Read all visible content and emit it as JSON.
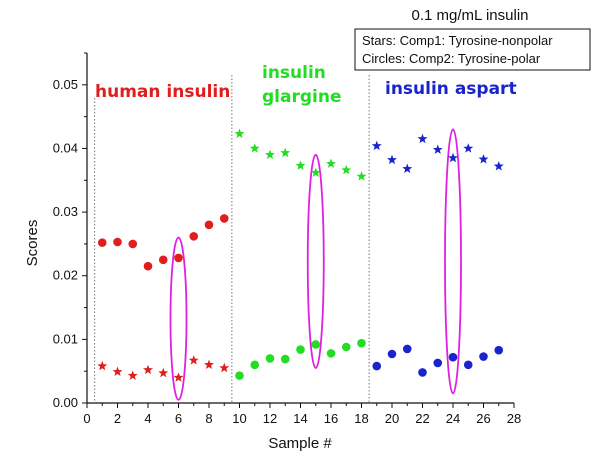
{
  "chart_data": {
    "type": "scatter",
    "title": "0.1 mg/mL insulin",
    "legend_lines": [
      "Stars: Comp1: Tyrosine-nonpolar",
      "Circles: Comp2: Tyrosine-polar"
    ],
    "xlabel": "Sample #",
    "ylabel": "Scores",
    "xlim": [
      0,
      28
    ],
    "ylim": [
      0,
      0.055
    ],
    "x_ticks": [
      0,
      2,
      4,
      6,
      8,
      10,
      12,
      14,
      16,
      18,
      20,
      22,
      24,
      26,
      28
    ],
    "y_ticks": [
      "0.00",
      "0.01",
      "0.02",
      "0.03",
      "0.04",
      "0.05"
    ],
    "y_tick_values": [
      0,
      0.01,
      0.02,
      0.03,
      0.04,
      0.05
    ],
    "dividers_x": [
      9.5,
      18.5
    ],
    "groups": [
      {
        "label_lines": [
          "human insulin"
        ],
        "color": "#e01e1e",
        "stars": {
          "x": [
            1,
            2,
            3,
            4,
            5,
            6,
            7,
            8,
            9
          ],
          "y": [
            0.0058,
            0.0049,
            0.0043,
            0.0052,
            0.0047,
            0.004,
            0.0067,
            0.006,
            0.0055
          ]
        },
        "circles": {
          "x": [
            1,
            2,
            3,
            4,
            5,
            6,
            7,
            8,
            9
          ],
          "y": [
            0.0252,
            0.0253,
            0.025,
            0.0215,
            0.0225,
            0.0228,
            0.0262,
            0.028,
            0.029
          ]
        },
        "highlight": {
          "x": 6,
          "y_low": 0.0005,
          "y_high": 0.026
        }
      },
      {
        "label_lines": [
          "insulin",
          "glargine"
        ],
        "color": "#22dd22",
        "stars": {
          "x": [
            10,
            11,
            12,
            13,
            14,
            15,
            16,
            17,
            18
          ],
          "y": [
            0.0423,
            0.04,
            0.039,
            0.0393,
            0.0373,
            0.0362,
            0.0376,
            0.0366,
            0.0356
          ]
        },
        "circles": {
          "x": [
            10,
            11,
            12,
            13,
            14,
            15,
            16,
            17,
            18
          ],
          "y": [
            0.0043,
            0.006,
            0.007,
            0.0069,
            0.0084,
            0.0092,
            0.0078,
            0.0088,
            0.0094
          ]
        },
        "highlight": {
          "x": 15,
          "y_low": 0.0055,
          "y_high": 0.039
        }
      },
      {
        "label_lines": [
          "insulin aspart"
        ],
        "color": "#1a24cc",
        "stars": {
          "x": [
            19,
            20,
            21,
            22,
            23,
            24,
            25,
            26,
            27
          ],
          "y": [
            0.0404,
            0.0382,
            0.0368,
            0.0415,
            0.0398,
            0.0385,
            0.04,
            0.0383,
            0.0372
          ]
        },
        "circles": {
          "x": [
            19,
            20,
            21,
            22,
            23,
            24,
            25,
            26,
            27
          ],
          "y": [
            0.0058,
            0.0077,
            0.0085,
            0.0048,
            0.0063,
            0.0072,
            0.006,
            0.0073,
            0.0083
          ]
        },
        "highlight": {
          "x": 24,
          "y_low": 0.0015,
          "y_high": 0.043
        }
      }
    ],
    "highlight_color": "#e020e0",
    "grid": false,
    "legend_placement": "top-right"
  }
}
